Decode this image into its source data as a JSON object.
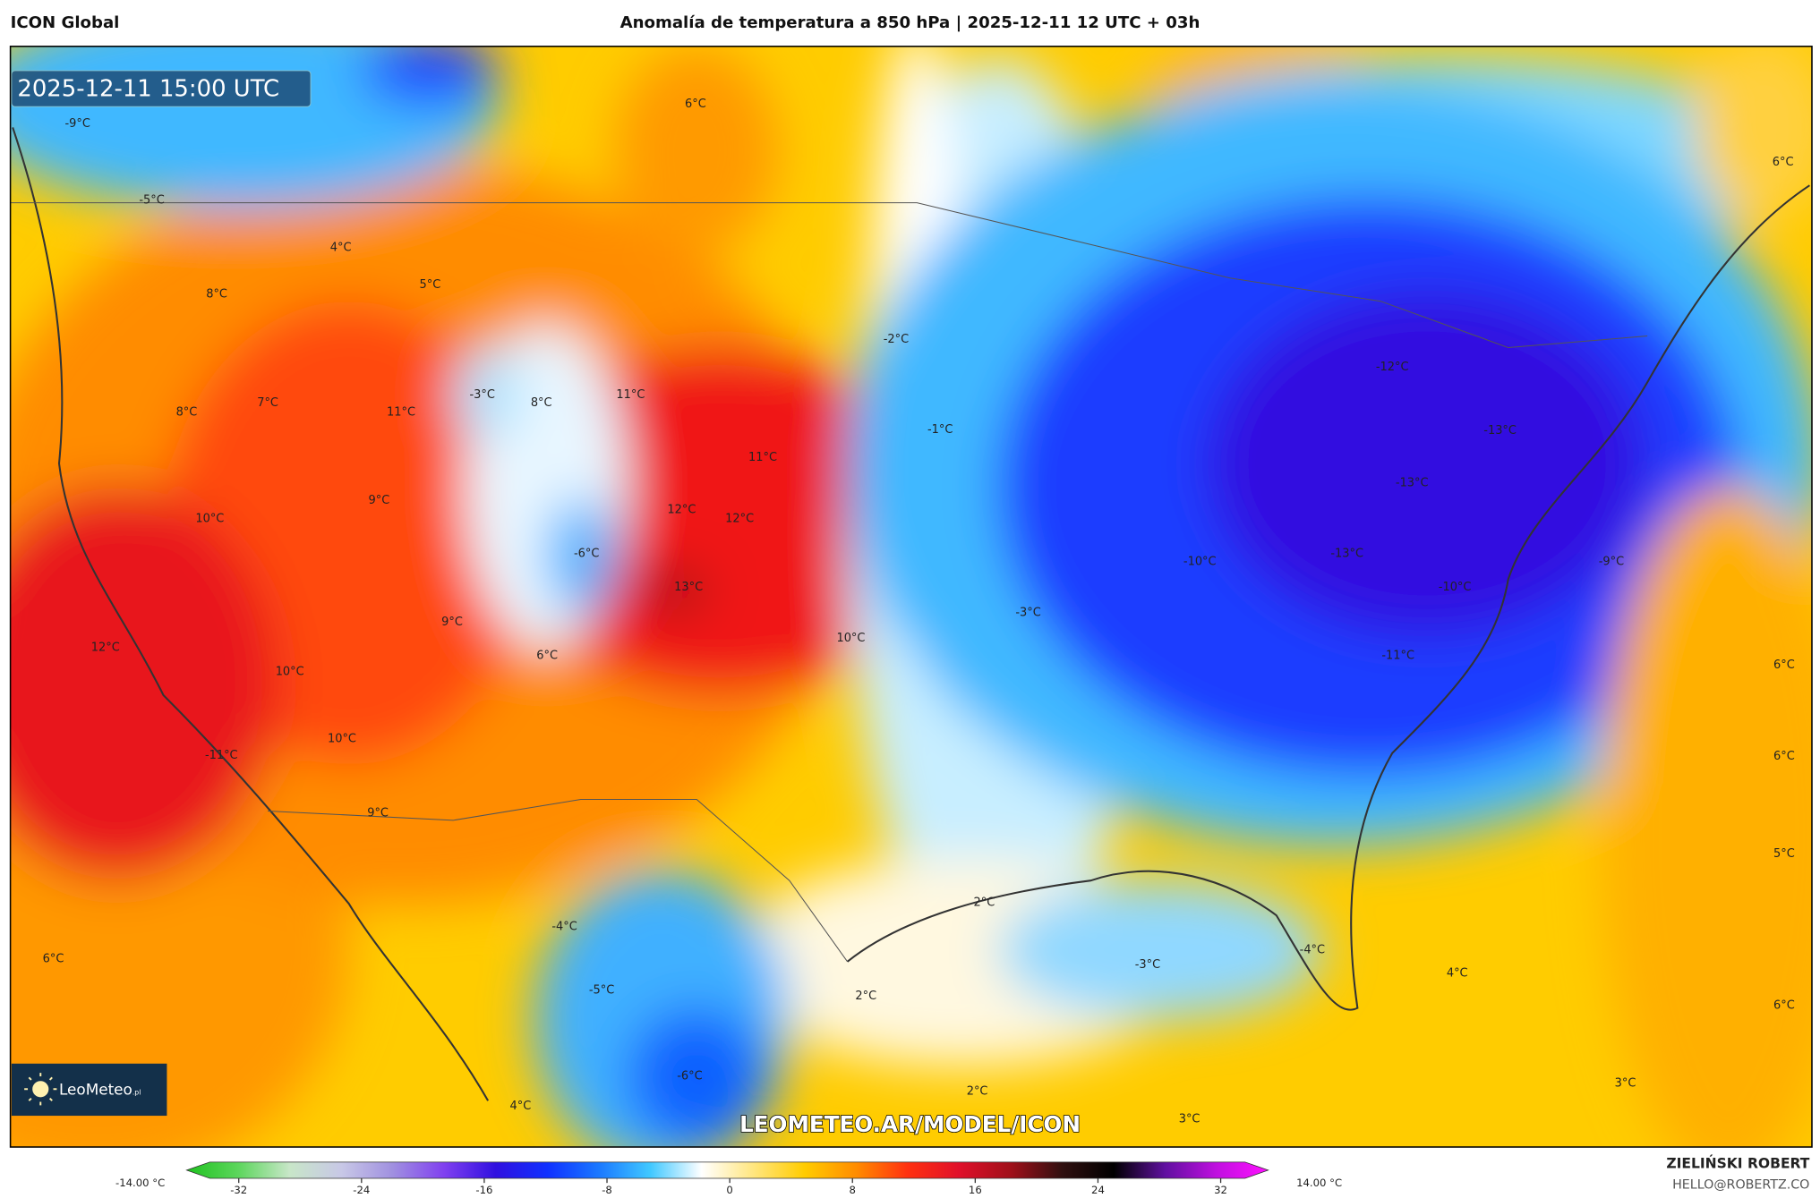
{
  "header": {
    "model": "ICON Global",
    "title": "Anomalía de temperatura a 850 hPa | 2025-12-11 12 UTC + 03h"
  },
  "map": {
    "valid_time": "2025-12-11 15:00 UTC",
    "watermark": "LEOMETEO.AR/MODEL/ICON",
    "logo_text": "LeoMeteo",
    "logo_suffix": ".pl",
    "labels": [
      "-9°C",
      "-5°C",
      "6°C",
      "4°C",
      "5°C",
      "8°C",
      "8°C",
      "7°C",
      "11°C",
      "-3°C",
      "8°C",
      "11°C",
      "-2°C",
      "-1°C",
      "11°C",
      "-12°C",
      "-13°C",
      "-13°C",
      "10°C",
      "9°C",
      "12°C",
      "12°C",
      "-6°C",
      "13°C",
      "-10°C",
      "-13°C",
      "-9°C",
      "-10°C",
      "-3°C",
      "9°C",
      "10°C",
      "12°C",
      "10°C",
      "6°C",
      "-11°C",
      "6°C",
      "10°C",
      "-11°C",
      "6°C",
      "9°C",
      "5°C",
      "2°C",
      "-4°C",
      "-3°C",
      "-4°C",
      "4°C",
      "6°C",
      "-5°C",
      "2°C",
      "6°C",
      "-6°C",
      "2°C",
      "3°C",
      "4°C",
      "3°C",
      "6°C"
    ]
  },
  "colorbar": {
    "min_label": "-14.00 °C",
    "max_label": "14.00 °C",
    "ticks": [
      "-32",
      "-24",
      "-16",
      "-8",
      "0",
      "8",
      "16",
      "24",
      "32"
    ],
    "colors": [
      "#1fc21f",
      "#5cd65c",
      "#c8e6c8",
      "#c8c8e6",
      "#a090e0",
      "#8040f0",
      "#3010e0",
      "#1030ff",
      "#1a78ff",
      "#40c8ff",
      "#ffffff",
      "#ffe680",
      "#ffcc00",
      "#ff8c00",
      "#ff3010",
      "#e0102a",
      "#a0101a",
      "#301010",
      "#000000",
      "#6010a0",
      "#c010e0",
      "#ff10ff"
    ]
  },
  "author": {
    "name": "ZIELIŃSKI ROBERT",
    "email": "HELLO@ROBERTZ.CO"
  }
}
